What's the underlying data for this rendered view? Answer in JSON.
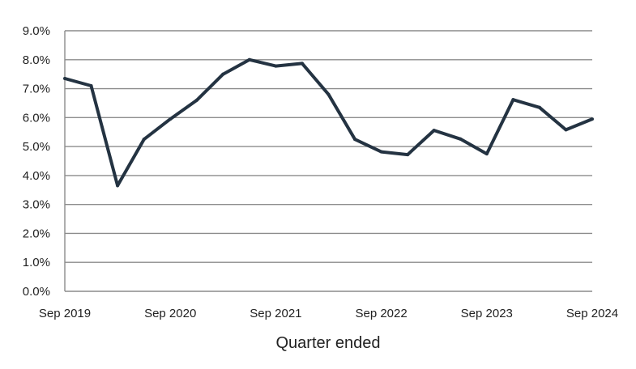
{
  "chart_data": {
    "type": "line",
    "title": "",
    "xlabel": "Quarter ended",
    "ylabel": "",
    "ylim": [
      0,
      9
    ],
    "y_ticks": [
      "0.0%",
      "1.0%",
      "2.0%",
      "3.0%",
      "4.0%",
      "5.0%",
      "6.0%",
      "7.0%",
      "8.0%",
      "9.0%"
    ],
    "x_tick_labels": [
      "Sep 2019",
      "Sep 2020",
      "Sep 2021",
      "Sep 2022",
      "Sep 2023",
      "Sep 2024"
    ],
    "grid": true,
    "line_color": "#243342",
    "grid_color": "#8c8c8c",
    "x": [
      "Sep 2019",
      "Dec 2019",
      "Mar 2020",
      "Jun 2020",
      "Sep 2020",
      "Dec 2020",
      "Mar 2021",
      "Jun 2021",
      "Sep 2021",
      "Dec 2021",
      "Mar 2022",
      "Jun 2022",
      "Sep 2022",
      "Dec 2022",
      "Mar 2023",
      "Jun 2023",
      "Sep 2023",
      "Dec 2023",
      "Mar 2024",
      "Jun 2024",
      "Sep 2024"
    ],
    "series": [
      {
        "values": [
          7.35,
          7.1,
          3.65,
          5.25,
          5.95,
          6.6,
          7.5,
          8.0,
          7.78,
          7.87,
          6.8,
          5.25,
          4.82,
          4.72,
          5.56,
          5.26,
          4.75,
          6.62,
          6.35,
          5.58,
          5.95
        ]
      }
    ]
  }
}
